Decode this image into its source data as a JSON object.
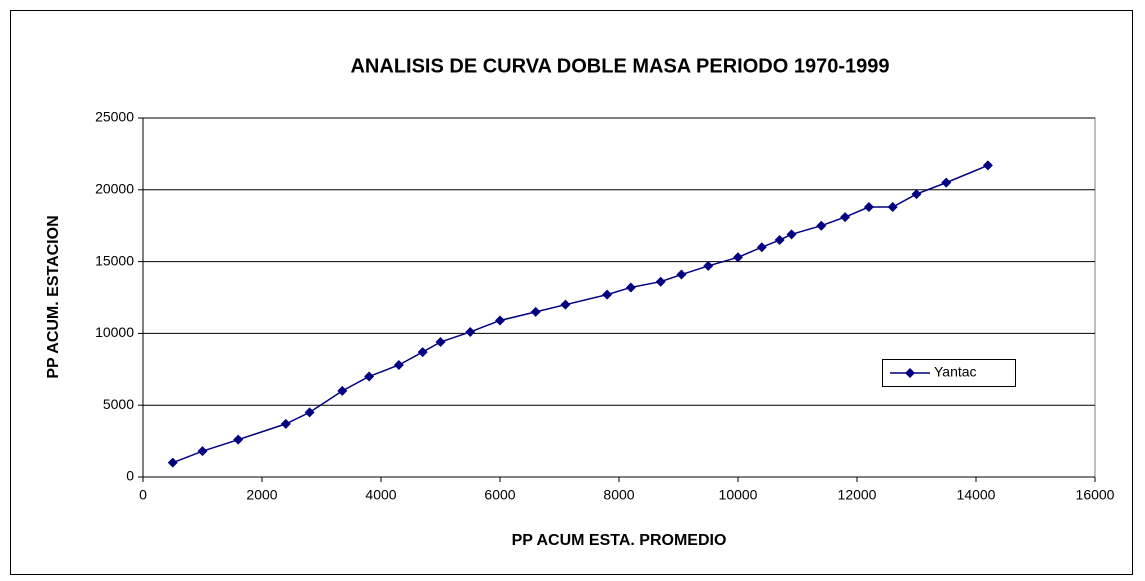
{
  "chart_data": {
    "type": "line",
    "title": "ANALISIS DE CURVA DOBLE MASA PERIODO 1970-1999",
    "xlabel": "PP ACUM ESTA. PROMEDIO",
    "ylabel": "PP ACUM. ESTACION",
    "x": [
      500,
      1000,
      1600,
      2400,
      2800,
      3350,
      3800,
      4300,
      4700,
      5000,
      5500,
      6000,
      6600,
      7100,
      7800,
      8200,
      8700,
      9050,
      9500,
      10000,
      10400,
      10700,
      10900,
      11400,
      11800,
      12200,
      12600,
      13000,
      13500,
      14200
    ],
    "series": [
      {
        "name": "Yantac",
        "color": "#000080",
        "values": [
          1000,
          1800,
          2600,
          3700,
          4500,
          6000,
          7000,
          7800,
          8700,
          9400,
          10100,
          10900,
          11500,
          12000,
          12700,
          13200,
          13600,
          14100,
          14700,
          15300,
          16000,
          16500,
          16900,
          17500,
          18100,
          18800,
          18800,
          19700,
          20500,
          21700
        ]
      }
    ],
    "xlim": [
      0,
      16000
    ],
    "xticks": [
      0,
      2000,
      4000,
      6000,
      8000,
      10000,
      12000,
      14000,
      16000
    ],
    "ylim": [
      0,
      25000
    ],
    "yticks": [
      0,
      5000,
      10000,
      15000,
      20000,
      25000
    ],
    "grid": true,
    "legend": "right"
  }
}
